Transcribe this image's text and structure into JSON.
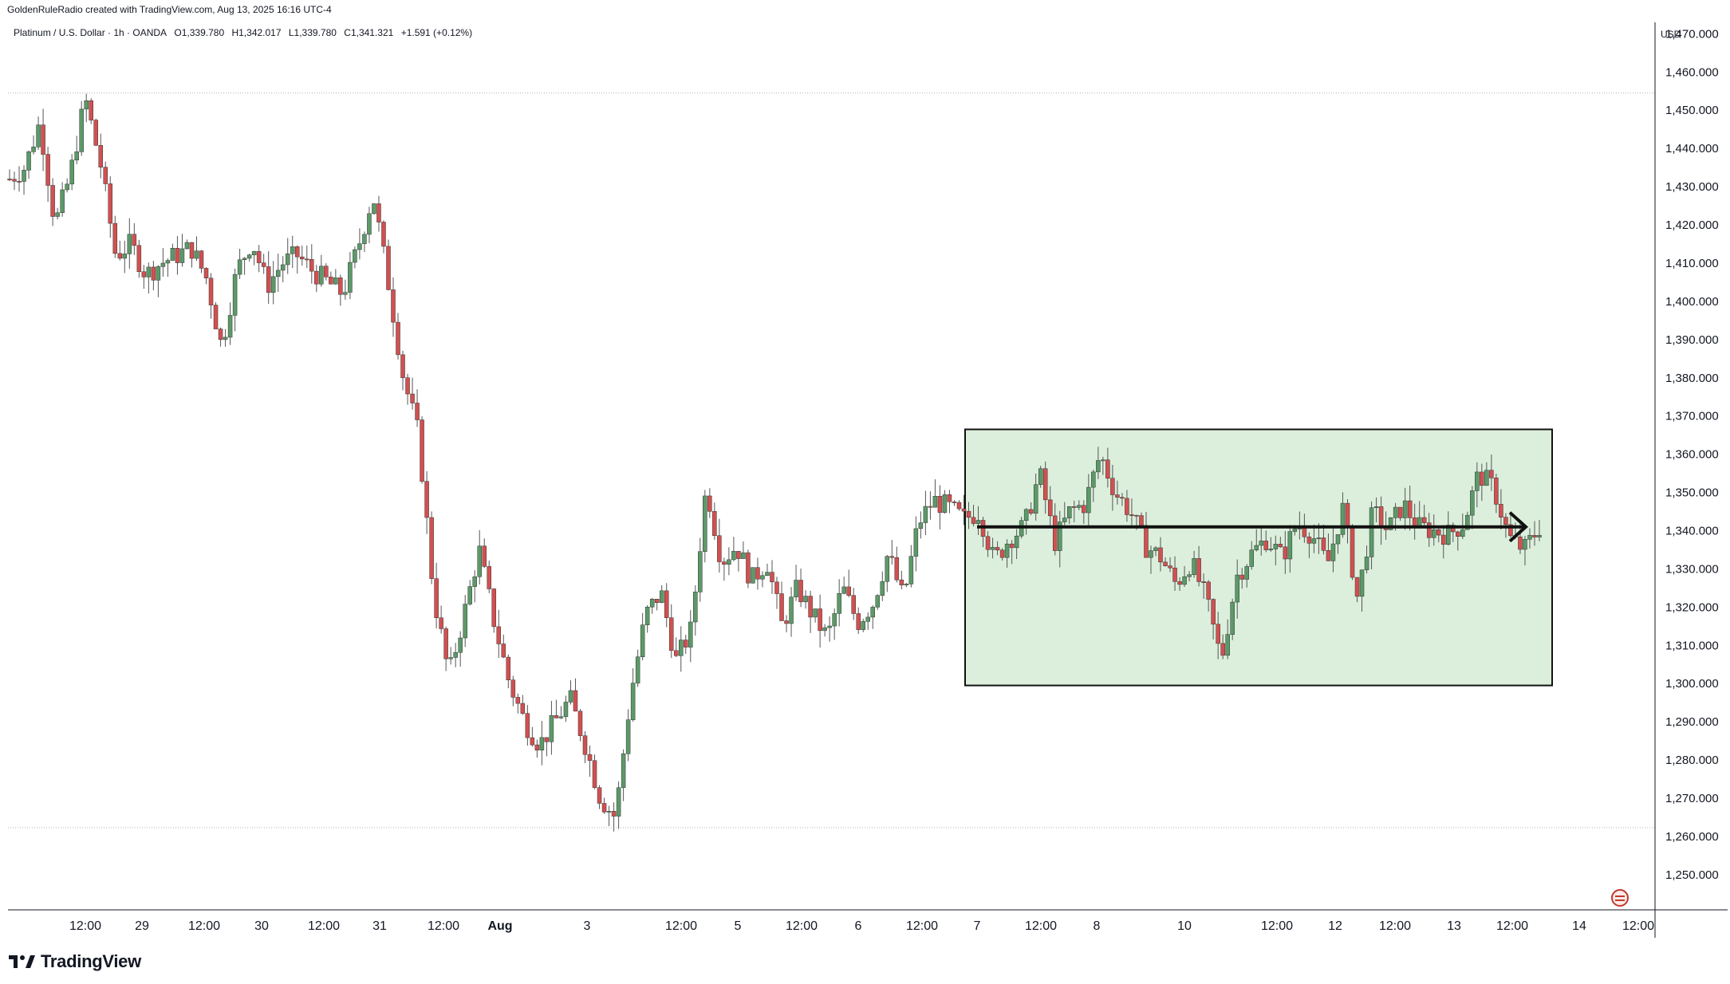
{
  "header": {
    "credit": "GoldenRuleRadio created with TradingView.com, Aug 13, 2025 16:16 UTC-4",
    "symbol": "Platinum / U.S. Dollar · 1h · OANDA",
    "open": "O1,339.780",
    "high": "H1,342.017",
    "low": "L1,339.780",
    "close": "C1,341.321",
    "change": "+1.591 (+0.12%)"
  },
  "axis": {
    "currency": "USD"
  },
  "brand": {
    "name": "TradingView",
    "logo_icon": "tradingview-logo-icon"
  },
  "colors": {
    "up": "#5b9a68",
    "down": "#d25050",
    "wick": "#555555",
    "zone_fill": "#dcefdc",
    "zone_stroke": "#111111",
    "arrow": "#111111",
    "ref_line": "#b0b3b8",
    "axis_text": "#131722"
  },
  "chart_data": {
    "type": "candlestick",
    "title": "Platinum / U.S. Dollar · 1h · OANDA",
    "currency": "USD",
    "ylim": [
      1241,
      1473
    ],
    "y_ticks": [
      1250,
      1260,
      1270,
      1280,
      1290,
      1300,
      1310,
      1320,
      1330,
      1340,
      1350,
      1360,
      1370,
      1380,
      1390,
      1400,
      1410,
      1420,
      1430,
      1440,
      1450,
      1460,
      1470
    ],
    "x_ticks": [
      "12:00",
      "29",
      "12:00",
      "30",
      "12:00",
      "31",
      "12:00",
      "Aug",
      "3",
      "12:00",
      "5",
      "12:00",
      "6",
      "12:00",
      "7",
      "12:00",
      "8",
      "10",
      "12:00",
      "12",
      "12:00",
      "13",
      "12:00",
      "14",
      "12:00"
    ],
    "reference_lines": [
      1454.5,
      1262.3
    ],
    "consolidation_zone": {
      "low": 1299.5,
      "high": 1366.5
    },
    "projection_level": 1341,
    "close_path": [
      1432,
      1435,
      1447,
      1420,
      1433,
      1453,
      1436,
      1412,
      1415,
      1407,
      1410,
      1412,
      1414,
      1406,
      1388,
      1408,
      1416,
      1404,
      1410,
      1412,
      1408,
      1405,
      1402,
      1414,
      1428,
      1405,
      1380,
      1365,
      1323,
      1302,
      1318,
      1335,
      1316,
      1300,
      1290,
      1284,
      1290,
      1296,
      1284,
      1270,
      1265,
      1297,
      1318,
      1324,
      1306,
      1314,
      1352,
      1332,
      1336,
      1327,
      1332,
      1315,
      1325,
      1318,
      1312,
      1325,
      1316,
      1321,
      1334,
      1322,
      1342,
      1348,
      1346,
      1343,
      1345,
      1332,
      1338,
      1341,
      1355,
      1337,
      1345,
      1347,
      1360,
      1350,
      1345,
      1336,
      1333,
      1326,
      1332,
      1322,
      1306,
      1328,
      1334,
      1338,
      1333,
      1342,
      1339,
      1331,
      1346,
      1322,
      1345,
      1340,
      1347,
      1341,
      1340,
      1339,
      1342,
      1355,
      1351,
      1338,
      1335,
      1341
    ],
    "n_candles": 320
  }
}
